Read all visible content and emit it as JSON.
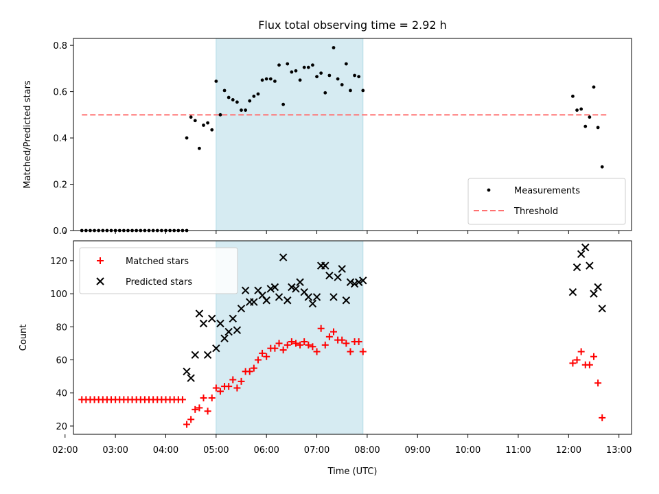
{
  "chart_data": [
    {
      "type": "scatter",
      "title": "Flux total observing time = 2.92 h",
      "ylabel": "Matched/Predicted stars",
      "xlim": [
        "02:10",
        "13:15"
      ],
      "ylim": [
        0,
        0.83
      ],
      "y_ticks": [
        0.0,
        0.2,
        0.4,
        0.6,
        0.8
      ],
      "y_tick_labels": [
        "0.0",
        "0.2",
        "0.4",
        "0.6",
        "0.8"
      ],
      "highlight_span": {
        "start": "05:00",
        "end": "07:55",
        "color": "#add8e6"
      },
      "threshold": {
        "name": "Threshold",
        "value": 0.5,
        "from": "02:20",
        "to": "12:45",
        "color": "#ff7070",
        "style": "dashed"
      },
      "legend": {
        "position": "lower right",
        "entries": [
          "Measurements",
          "Threshold"
        ]
      },
      "series": [
        {
          "name": "Measurements",
          "marker": "dot",
          "color": "#000000",
          "points": [
            [
              "02:20",
              0.0
            ],
            [
              "02:25",
              0.0
            ],
            [
              "02:30",
              0.0
            ],
            [
              "02:35",
              0.0
            ],
            [
              "02:40",
              0.0
            ],
            [
              "02:45",
              0.0
            ],
            [
              "02:50",
              0.0
            ],
            [
              "02:55",
              0.0
            ],
            [
              "03:00",
              0.0
            ],
            [
              "03:05",
              0.0
            ],
            [
              "03:10",
              0.0
            ],
            [
              "03:15",
              0.0
            ],
            [
              "03:20",
              0.0
            ],
            [
              "03:25",
              0.0
            ],
            [
              "03:30",
              0.0
            ],
            [
              "03:35",
              0.0
            ],
            [
              "03:40",
              0.0
            ],
            [
              "03:45",
              0.0
            ],
            [
              "03:50",
              0.0
            ],
            [
              "03:55",
              0.0
            ],
            [
              "04:00",
              0.0
            ],
            [
              "04:05",
              0.0
            ],
            [
              "04:10",
              0.0
            ],
            [
              "04:15",
              0.0
            ],
            [
              "04:20",
              0.0
            ],
            [
              "04:25",
              0.0
            ],
            [
              "04:25",
              0.4
            ],
            [
              "04:30",
              0.49
            ],
            [
              "04:35",
              0.475
            ],
            [
              "04:40",
              0.355
            ],
            [
              "04:45",
              0.455
            ],
            [
              "04:50",
              0.465
            ],
            [
              "04:55",
              0.435
            ],
            [
              "05:00",
              0.645
            ],
            [
              "05:05",
              0.5
            ],
            [
              "05:10",
              0.605
            ],
            [
              "05:15",
              0.575
            ],
            [
              "05:20",
              0.565
            ],
            [
              "05:25",
              0.555
            ],
            [
              "05:30",
              0.52
            ],
            [
              "05:35",
              0.52
            ],
            [
              "05:40",
              0.56
            ],
            [
              "05:45",
              0.58
            ],
            [
              "05:50",
              0.59
            ],
            [
              "05:55",
              0.65
            ],
            [
              "06:00",
              0.655
            ],
            [
              "06:05",
              0.655
            ],
            [
              "06:10",
              0.645
            ],
            [
              "06:15",
              0.715
            ],
            [
              "06:20",
              0.545
            ],
            [
              "06:25",
              0.72
            ],
            [
              "06:30",
              0.685
            ],
            [
              "06:35",
              0.69
            ],
            [
              "06:40",
              0.65
            ],
            [
              "06:45",
              0.705
            ],
            [
              "06:50",
              0.705
            ],
            [
              "06:55",
              0.715
            ],
            [
              "07:00",
              0.665
            ],
            [
              "07:05",
              0.68
            ],
            [
              "07:10",
              0.595
            ],
            [
              "07:15",
              0.67
            ],
            [
              "07:20",
              0.79
            ],
            [
              "07:25",
              0.655
            ],
            [
              "07:30",
              0.63
            ],
            [
              "07:35",
              0.72
            ],
            [
              "07:40",
              0.605
            ],
            [
              "07:45",
              0.67
            ],
            [
              "07:50",
              0.665
            ],
            [
              "07:55",
              0.605
            ],
            [
              "12:05",
              0.58
            ],
            [
              "12:10",
              0.52
            ],
            [
              "12:15",
              0.525
            ],
            [
              "12:20",
              0.45
            ],
            [
              "12:25",
              0.49
            ],
            [
              "12:30",
              0.62
            ],
            [
              "12:35",
              0.445
            ],
            [
              "12:40",
              0.275
            ]
          ]
        }
      ]
    },
    {
      "type": "scatter",
      "xlabel": "Time (UTC)",
      "ylabel": "Count",
      "xlim": [
        "02:10",
        "13:15"
      ],
      "ylim": [
        15,
        132
      ],
      "x_ticks": [
        "02:00",
        "03:00",
        "04:00",
        "05:00",
        "06:00",
        "07:00",
        "08:00",
        "09:00",
        "10:00",
        "11:00",
        "12:00",
        "13:00"
      ],
      "y_ticks": [
        20,
        40,
        60,
        80,
        100,
        120
      ],
      "y_tick_labels": [
        "20",
        "40",
        "60",
        "80",
        "100",
        "120"
      ],
      "highlight_span": {
        "start": "05:00",
        "end": "07:55",
        "color": "#add8e6"
      },
      "legend": {
        "position": "upper left",
        "entries": [
          "Matched stars",
          "Predicted stars"
        ]
      },
      "series": [
        {
          "name": "Matched stars",
          "marker": "plus",
          "color": "#ff0000",
          "points": [
            [
              "02:20",
              36
            ],
            [
              "02:25",
              36
            ],
            [
              "02:30",
              36
            ],
            [
              "02:35",
              36
            ],
            [
              "02:40",
              36
            ],
            [
              "02:45",
              36
            ],
            [
              "02:50",
              36
            ],
            [
              "02:55",
              36
            ],
            [
              "03:00",
              36
            ],
            [
              "03:05",
              36
            ],
            [
              "03:10",
              36
            ],
            [
              "03:15",
              36
            ],
            [
              "03:20",
              36
            ],
            [
              "03:25",
              36
            ],
            [
              "03:30",
              36
            ],
            [
              "03:35",
              36
            ],
            [
              "03:40",
              36
            ],
            [
              "03:45",
              36
            ],
            [
              "03:50",
              36
            ],
            [
              "03:55",
              36
            ],
            [
              "04:00",
              36
            ],
            [
              "04:05",
              36
            ],
            [
              "04:10",
              36
            ],
            [
              "04:15",
              36
            ],
            [
              "04:20",
              36
            ],
            [
              "04:25",
              21
            ],
            [
              "04:30",
              24
            ],
            [
              "04:35",
              30
            ],
            [
              "04:40",
              31
            ],
            [
              "04:45",
              37
            ],
            [
              "04:50",
              29
            ],
            [
              "04:55",
              37
            ],
            [
              "05:00",
              43
            ],
            [
              "05:05",
              41
            ],
            [
              "05:10",
              44
            ],
            [
              "05:15",
              44
            ],
            [
              "05:20",
              48
            ],
            [
              "05:25",
              43
            ],
            [
              "05:30",
              47
            ],
            [
              "05:35",
              53
            ],
            [
              "05:40",
              53
            ],
            [
              "05:45",
              55
            ],
            [
              "05:50",
              60
            ],
            [
              "05:55",
              64
            ],
            [
              "06:00",
              62
            ],
            [
              "06:05",
              67
            ],
            [
              "06:10",
              67
            ],
            [
              "06:15",
              70
            ],
            [
              "06:20",
              66
            ],
            [
              "06:25",
              69
            ],
            [
              "06:30",
              71
            ],
            [
              "06:35",
              70
            ],
            [
              "06:40",
              69
            ],
            [
              "06:45",
              71
            ],
            [
              "06:50",
              69
            ],
            [
              "06:55",
              68
            ],
            [
              "07:00",
              65
            ],
            [
              "07:05",
              79
            ],
            [
              "07:10",
              69
            ],
            [
              "07:15",
              74
            ],
            [
              "07:20",
              77
            ],
            [
              "07:25",
              72
            ],
            [
              "07:30",
              72
            ],
            [
              "07:35",
              70
            ],
            [
              "07:40",
              65
            ],
            [
              "07:45",
              71
            ],
            [
              "07:50",
              71
            ],
            [
              "07:55",
              65
            ],
            [
              "12:05",
              58
            ],
            [
              "12:10",
              60
            ],
            [
              "12:15",
              65
            ],
            [
              "12:20",
              57
            ],
            [
              "12:25",
              57
            ],
            [
              "12:30",
              62
            ],
            [
              "12:35",
              46
            ],
            [
              "12:40",
              25
            ]
          ]
        },
        {
          "name": "Predicted stars",
          "marker": "x",
          "color": "#000000",
          "points": [
            [
              "04:25",
              53
            ],
            [
              "04:30",
              49
            ],
            [
              "04:35",
              63
            ],
            [
              "04:40",
              88
            ],
            [
              "04:45",
              82
            ],
            [
              "04:50",
              63
            ],
            [
              "04:55",
              85
            ],
            [
              "05:00",
              67
            ],
            [
              "05:05",
              82
            ],
            [
              "05:10",
              73
            ],
            [
              "05:15",
              77
            ],
            [
              "05:20",
              85
            ],
            [
              "05:25",
              78
            ],
            [
              "05:30",
              91
            ],
            [
              "05:35",
              102
            ],
            [
              "05:40",
              95
            ],
            [
              "05:45",
              95
            ],
            [
              "05:50",
              102
            ],
            [
              "05:55",
              99
            ],
            [
              "06:00",
              96
            ],
            [
              "06:05",
              103
            ],
            [
              "06:10",
              104
            ],
            [
              "06:15",
              98
            ],
            [
              "06:20",
              122
            ],
            [
              "06:25",
              96
            ],
            [
              "06:30",
              104
            ],
            [
              "06:35",
              103
            ],
            [
              "06:40",
              107
            ],
            [
              "06:45",
              101
            ],
            [
              "06:50",
              98
            ],
            [
              "06:55",
              94
            ],
            [
              "07:00",
              98
            ],
            [
              "07:05",
              117
            ],
            [
              "07:10",
              117
            ],
            [
              "07:15",
              111
            ],
            [
              "07:20",
              98
            ],
            [
              "07:25",
              110
            ],
            [
              "07:30",
              115
            ],
            [
              "07:35",
              96
            ],
            [
              "07:40",
              107
            ],
            [
              "07:45",
              106
            ],
            [
              "07:50",
              107
            ],
            [
              "07:55",
              108
            ],
            [
              "12:05",
              101
            ],
            [
              "12:10",
              116
            ],
            [
              "12:15",
              124
            ],
            [
              "12:20",
              128
            ],
            [
              "12:25",
              117
            ],
            [
              "12:30",
              100
            ],
            [
              "12:35",
              104
            ],
            [
              "12:40",
              91
            ]
          ]
        }
      ]
    }
  ]
}
